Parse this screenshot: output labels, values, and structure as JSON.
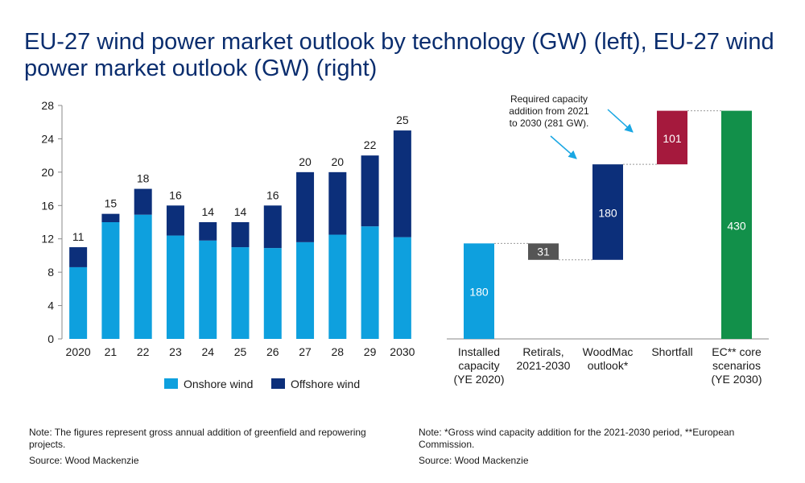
{
  "title": "EU-27 wind power market outlook by technology (GW) (left), EU-27 wind power market outlook (GW) (right)",
  "notes": {
    "left": "Note: The figures represent gross annual addition of greenfield and repowering projects.",
    "left_source": "Source: Wood Mackenzie",
    "right": "Note: *Gross wind capacity addition for the 2021-2030 period, **European Commission.",
    "right_source": "Source: Wood Mackenzie"
  },
  "chart_data": [
    {
      "type": "bar",
      "stacked": true,
      "title": "",
      "categories": [
        "2020",
        "21",
        "22",
        "23",
        "24",
        "25",
        "26",
        "27",
        "28",
        "29",
        "2030"
      ],
      "series": [
        {
          "name": "Onshore wind",
          "color": "#0ea0de",
          "values": [
            8.6,
            14.0,
            14.9,
            12.4,
            11.8,
            11.0,
            10.9,
            11.6,
            12.5,
            13.5,
            12.2
          ]
        },
        {
          "name": "Offshore wind",
          "color": "#0c2f7a",
          "values": [
            2.4,
            1.0,
            3.1,
            3.6,
            2.2,
            3.0,
            5.1,
            8.4,
            7.5,
            8.5,
            12.8
          ]
        }
      ],
      "totals": [
        "11",
        "15",
        "18",
        "16",
        "14",
        "14",
        "16",
        "20",
        "20",
        "22",
        "25"
      ],
      "yticks": [
        0,
        4,
        8,
        12,
        16,
        20,
        24,
        28
      ],
      "ylim": [
        0,
        28
      ],
      "legend_position": "bottom",
      "grid": false
    },
    {
      "type": "bar",
      "subtype": "waterfall",
      "title": "",
      "categories": [
        "Installed capacity (YE 2020)",
        "Retirals, 2021-2030",
        "WoodMac outlook*",
        "Shortfall",
        "EC** core scenarios (YE 2030)"
      ],
      "category_lines": [
        [
          "Installed",
          "capacity",
          "(YE 2020)"
        ],
        [
          "Retirals,",
          "2021-2030"
        ],
        [
          "WoodMac",
          "outlook*"
        ],
        [
          "Shortfall"
        ],
        [
          "EC** core",
          "scenarios",
          "(YE 2030)"
        ]
      ],
      "bars": [
        {
          "label": "180",
          "base": 0,
          "value": 180,
          "color": "#0ea0de"
        },
        {
          "label": "31",
          "base": 149,
          "value": 31,
          "color": "#555555"
        },
        {
          "label": "180",
          "base": 149,
          "value": 180,
          "color": "#0c2f7a"
        },
        {
          "label": "101",
          "base": 329,
          "value": 101,
          "color": "#a5193d"
        },
        {
          "label": "430",
          "base": 0,
          "value": 430,
          "color": "#12904a"
        }
      ],
      "ylim": [
        0,
        440
      ],
      "annotation": {
        "lines": [
          "Required capacity",
          "addition from 2021",
          "to 2030 (281 GW)."
        ],
        "color": "#1aa7e3"
      },
      "grid": false
    }
  ]
}
